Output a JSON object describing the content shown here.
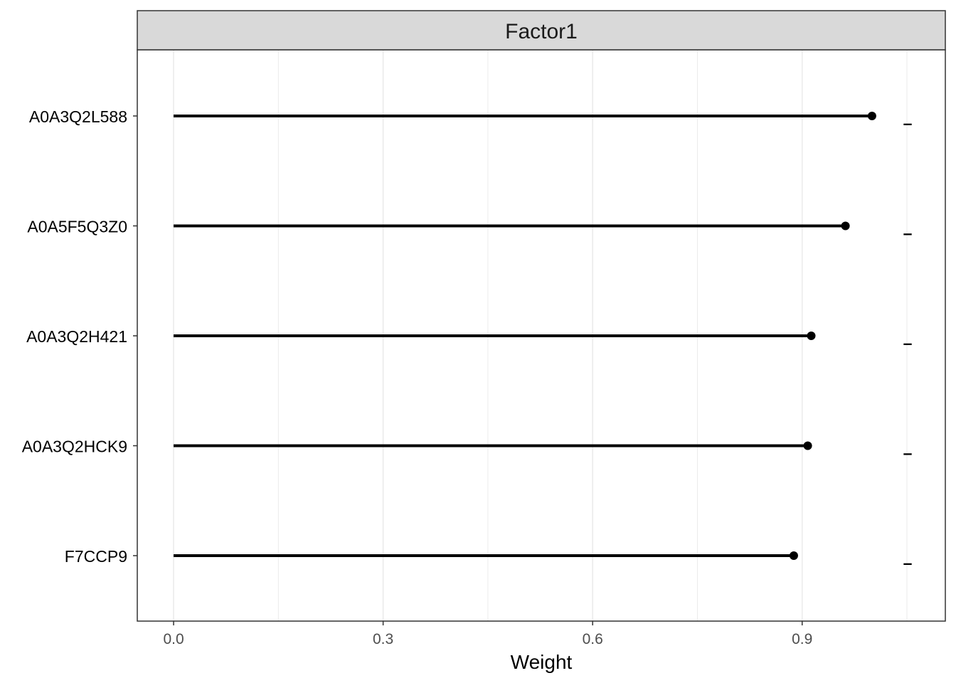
{
  "chart_data": {
    "type": "lollipop",
    "facet_title": "Factor1",
    "xlabel": "Weight",
    "ylabel": "",
    "xlim": [
      -0.052,
      1.105
    ],
    "x_ticks": [
      0.0,
      0.3,
      0.6,
      0.9
    ],
    "x_tick_labels": [
      "0.0",
      "0.3",
      "0.6",
      "0.9"
    ],
    "x_minor_grid": [
      0.15,
      0.45,
      0.75,
      1.05
    ],
    "categories": [
      "A0A3Q2L588",
      "A0A5F5Q3Z0",
      "A0A3Q2H421",
      "A0A3Q2HCK9",
      "F7CCP9"
    ],
    "values": [
      1.0,
      0.962,
      0.913,
      0.908,
      0.888
    ],
    "sign_labels": [
      "-",
      "-",
      "-",
      "-",
      "-"
    ],
    "grid": true,
    "colors": {
      "lines": "#000000",
      "strip_fill": "#d9d9d9",
      "grid": "#ebebeb",
      "panel_border": "#333333"
    }
  }
}
